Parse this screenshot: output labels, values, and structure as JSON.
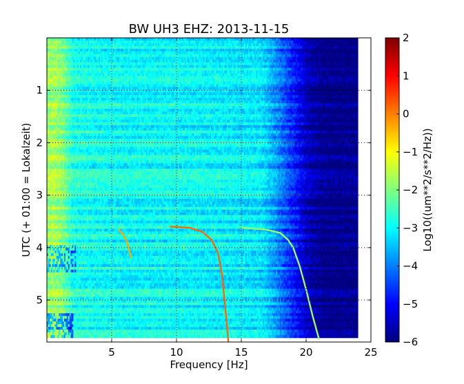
{
  "chart_data": {
    "type": "heatmap",
    "title": "BW UH3 EHZ: 2013-11-15",
    "xlabel": "Frequency [Hz]",
    "ylabel": "UTC (+ 01:00 = Lokalzeit)",
    "xlim": [
      0,
      25
    ],
    "ylim": [
      5.8,
      0
    ],
    "x_ticks": [
      5,
      10,
      15,
      20,
      25
    ],
    "y_ticks": [
      1,
      2,
      3,
      4,
      5
    ],
    "grid": true,
    "colorbar": {
      "label": "Log10((um**2/s**2/Hz))",
      "range": [
        -6,
        2
      ],
      "ticks": [
        -6,
        -5,
        -4,
        -3,
        -2,
        -1,
        0,
        1,
        2
      ],
      "colormap": "jet",
      "colors": [
        "#00007f",
        "#0000ff",
        "#007fff",
        "#00ffff",
        "#7fff7f",
        "#ffff00",
        "#ff7f00",
        "#ff0000",
        "#7f0000"
      ]
    },
    "data_end_hours": 5.72,
    "data_end_frequency_hz": 24.0,
    "background_levels": [
      {
        "frequency_hz": 0.0,
        "level": -1.9
      },
      {
        "frequency_hz": 0.5,
        "level": -1.7
      },
      {
        "frequency_hz": 1.2,
        "level": -2.0
      },
      {
        "frequency_hz": 2.0,
        "level": -2.8
      },
      {
        "frequency_hz": 3.5,
        "level": -2.9
      },
      {
        "frequency_hz": 6.0,
        "level": -3.0
      },
      {
        "frequency_hz": 10.0,
        "level": -3.0
      },
      {
        "frequency_hz": 14.0,
        "level": -3.1
      },
      {
        "frequency_hz": 16.5,
        "level": -3.2
      },
      {
        "frequency_hz": 17.5,
        "level": -3.7
      },
      {
        "frequency_hz": 18.5,
        "level": -4.4
      },
      {
        "frequency_hz": 19.5,
        "level": -5.1
      },
      {
        "frequency_hz": 20.5,
        "level": -5.7
      },
      {
        "frequency_hz": 21.5,
        "level": -6.0
      },
      {
        "frequency_hz": 25.0,
        "level": -6.0
      }
    ],
    "features": [
      {
        "name": "sweep 1",
        "level": -0.3,
        "points": [
          [
            5.5,
            3.65
          ],
          [
            5.9,
            3.75
          ],
          [
            6.2,
            3.9
          ],
          [
            6.4,
            4.1
          ],
          [
            6.5,
            4.2
          ]
        ]
      },
      {
        "name": "sweep 2",
        "level": 0.2,
        "points": [
          [
            9.5,
            3.6
          ],
          [
            11.0,
            3.62
          ],
          [
            12.0,
            3.7
          ],
          [
            12.7,
            3.85
          ],
          [
            13.2,
            4.1
          ],
          [
            13.5,
            4.5
          ],
          [
            13.7,
            5.0
          ],
          [
            13.9,
            5.5
          ],
          [
            14.0,
            5.8
          ]
        ]
      },
      {
        "name": "sweep 3",
        "level": -1.8,
        "points": [
          [
            15.0,
            3.62
          ],
          [
            17.0,
            3.66
          ],
          [
            18.0,
            3.72
          ],
          [
            18.6,
            3.85
          ],
          [
            19.0,
            4.0
          ],
          [
            19.5,
            4.35
          ],
          [
            20.0,
            4.8
          ],
          [
            20.5,
            5.3
          ],
          [
            21.0,
            5.75
          ]
        ]
      }
    ]
  }
}
